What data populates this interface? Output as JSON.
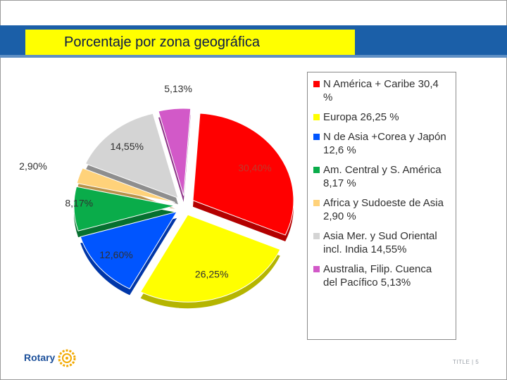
{
  "title": "Porcentaje por zona geográfica",
  "footer": "TITLE | 5",
  "logo": {
    "text": "Rotary"
  },
  "chart_data": {
    "type": "pie",
    "title": "",
    "slices": [
      {
        "label": "30,40%",
        "value": 30.4,
        "color": "#ff0000",
        "dark": "#b30000"
      },
      {
        "label": "26,25%",
        "value": 26.25,
        "color": "#ffff00",
        "dark": "#b5b500"
      },
      {
        "label": "12,60%",
        "value": 12.6,
        "color": "#0055ff",
        "dark": "#0036a8"
      },
      {
        "label": "8,17%",
        "value": 8.17,
        "color": "#0aac4a",
        "dark": "#067030"
      },
      {
        "label": "2,90%",
        "value": 2.9,
        "color": "#ffd27a",
        "dark": "#b8914a"
      },
      {
        "label": "14,55%",
        "value": 14.55,
        "color": "#d4d4d4",
        "dark": "#8e8e8e"
      },
      {
        "label": "5,13%",
        "value": 5.13,
        "color": "#d259c8",
        "dark": "#8e3588"
      }
    ],
    "legend": {
      "placement": "right",
      "items": [
        {
          "text": "N América + Caribe  30,4\n%",
          "color": "#ff0000"
        },
        {
          "text": "Europa 26,25 %",
          "color": "#ffff00"
        },
        {
          "text": "N de Asia +Corea y Japón\n12,6 %",
          "color": "#0055ff"
        },
        {
          "text": "Am. Central y S. América\n8,17 %",
          "color": "#0aac4a"
        },
        {
          "text": "Africa y Sudoeste de Asia\n2,90 %",
          "color": "#ffd27a"
        },
        {
          "text": "Asia Mer. y Sud Oriental\nincl. India   14,55%",
          "color": "#d4d4d4"
        },
        {
          "text": "Australia, Filip. Cuenca\ndel Pacífico    5,13%",
          "color": "#d259c8"
        }
      ]
    }
  }
}
